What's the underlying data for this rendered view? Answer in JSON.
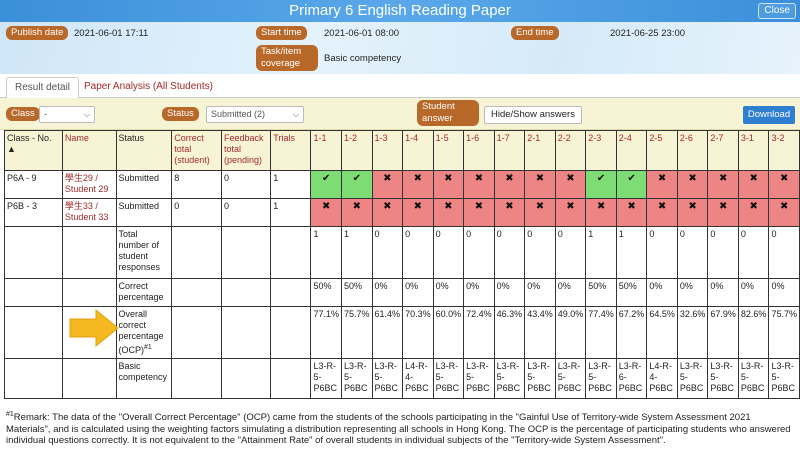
{
  "window": {
    "title": "Primary 6 English Reading Paper",
    "close_label": "Close"
  },
  "info": {
    "publish_date_label": "Publish date",
    "publish_date": "2021-06-01 17:11",
    "start_time_label": "Start time",
    "start_time": "2021-06-01 08:00",
    "end_time_label": "End time",
    "end_time": "2021-06-25 23:00",
    "coverage_label": "Task/item coverage",
    "coverage": "Basic competency"
  },
  "tabs": [
    {
      "label": "Result detail"
    },
    {
      "label": "Paper Analysis (All Students)"
    }
  ],
  "filters": {
    "class_label": "Class",
    "class_value": "-",
    "status_label": "Status",
    "status_value": "Submitted (2)",
    "student_answer_label": "Student answer",
    "hide_show_label": "Hide/Show answers",
    "download_label": "Download"
  },
  "table": {
    "headers": {
      "class_no": "Class - No. ▲",
      "name": "Name",
      "status": "Status",
      "correct_total": "Correct total (student)",
      "feedback_total": "Feedback total (pending)",
      "trials": "Trials"
    },
    "questions": [
      "1-1",
      "1-2",
      "1-3",
      "1-4",
      "1-5",
      "1-6",
      "1-7",
      "2-1",
      "2-2",
      "2-3",
      "2-4",
      "2-5",
      "2-6",
      "2-7",
      "3-1",
      "3-2"
    ],
    "students": [
      {
        "class_no": "P6A - 9",
        "name": "學生29 / Student 29",
        "status": "Submitted",
        "correct": "8",
        "feedback": "0",
        "trials": "1",
        "answers": [
          true,
          true,
          false,
          false,
          false,
          false,
          false,
          false,
          false,
          true,
          true,
          false,
          false,
          false,
          false,
          false
        ]
      },
      {
        "class_no": "P6B - 3",
        "name": "學生33 / Student 33",
        "status": "Submitted",
        "correct": "0",
        "feedback": "0",
        "trials": "1",
        "answers": [
          false,
          false,
          false,
          false,
          false,
          false,
          false,
          false,
          false,
          false,
          false,
          false,
          false,
          false,
          false,
          false
        ]
      }
    ],
    "summary_rows": [
      {
        "label": "Total number of student responses",
        "values": [
          "1",
          "1",
          "0",
          "0",
          "0",
          "0",
          "0",
          "0",
          "0",
          "1",
          "1",
          "0",
          "0",
          "0",
          "0",
          "0"
        ]
      },
      {
        "label": "Correct percentage",
        "values": [
          "50%",
          "50%",
          "0%",
          "0%",
          "0%",
          "0%",
          "0%",
          "0%",
          "0%",
          "50%",
          "50%",
          "0%",
          "0%",
          "0%",
          "0%",
          "0%"
        ]
      },
      {
        "label": "Overall correct percentage (OCP)",
        "label_sup": "#1",
        "values": [
          "77.1%",
          "75.7%",
          "61.4%",
          "70.3%",
          "60.0%",
          "72.4%",
          "46.3%",
          "43.4%",
          "49.0%",
          "77.4%",
          "67.2%",
          "64.5%",
          "32.6%",
          "67.9%",
          "82.6%",
          "75.7%"
        ]
      },
      {
        "label": "Basic competency",
        "values": [
          "L3-R-5-P6BC",
          "L3-R-5-P6BC",
          "L3-R-5-P6BC",
          "L4-R-4-P6BC",
          "L3-R-5-P6BC",
          "L3-R-5-P6BC",
          "L3-R-5-P6BC",
          "L3-R-5-P6BC",
          "L3-R-5-P6BC",
          "L3-R-5-P6BC",
          "L3-R-6-P6BC",
          "L4-R-4-P6BC",
          "L3-R-5-P6BC",
          "L3-R-5-P6BC",
          "L3-R-5-P6BC",
          "L3-R-5-P6BC"
        ]
      }
    ],
    "correct_mark": "✔",
    "wrong_mark": "✖"
  },
  "remark": {
    "sup": "#1",
    "text": "Remark: The data of the \"Overall Correct Percentage\" (OCP) came from the students of the schools participating in the \"Gainful Use of Territory-wide System Assessment 2021 Materials\", and is calculated using the weighting factors simulating a distribution representing all schools in Hong Kong. The OCP is the percentage of participating students who answered individual questions correctly. It is not equivalent to the \"Attainment Rate\"  of overall students in individual subjects of the \"Territory-wide System Assessment\"."
  },
  "colors": {
    "accent": "#b8692a",
    "title_bar": "#3b8fd9",
    "correct": "#7ddc73",
    "wrong": "#ee8585",
    "arrow": "#f5b820"
  }
}
